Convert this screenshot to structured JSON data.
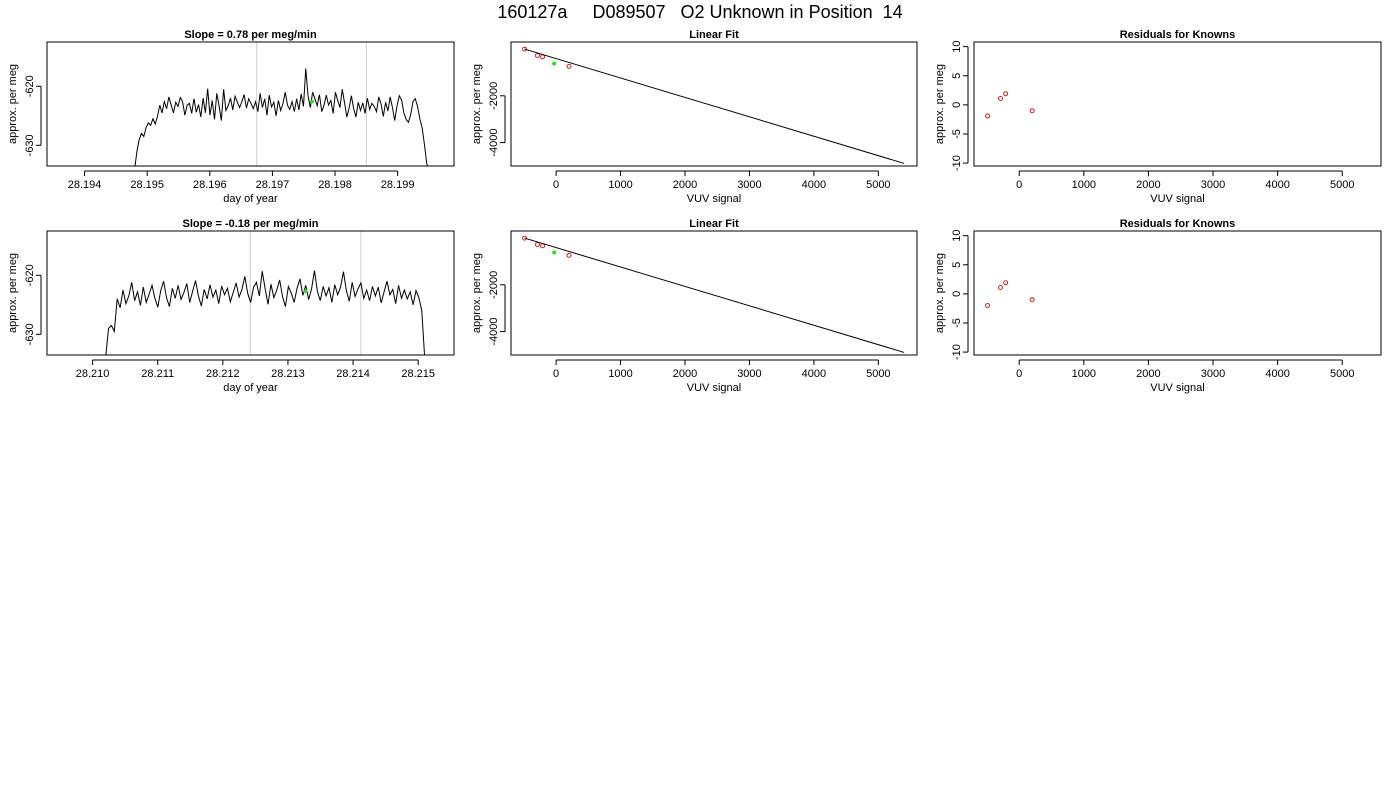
{
  "figure": {
    "title": "160127a     D089507   O2 Unknown in Position  14"
  },
  "colors": {
    "line": "#000000",
    "known_points": "#cc2222",
    "unknown_point": "#22dd22",
    "window_lines": "#cccccc",
    "axes": "#000000"
  },
  "chart_data": [
    {
      "type": "line",
      "title": "Slope =  0.78  per meg/min",
      "xlabel": "day of year",
      "ylabel": "approx. per meg",
      "xlim": [
        28.1934,
        28.1999
      ],
      "ylim": [
        -633.5,
        -612.5
      ],
      "x_ticks": [
        28.194,
        28.195,
        28.196,
        28.197,
        28.198,
        28.199
      ],
      "x_tick_labels": [
        "28.194",
        "28.195",
        "28.196",
        "28.197",
        "28.198",
        "28.199"
      ],
      "y_ticks": [
        -630,
        -620
      ],
      "y_tick_labels": [
        "-630",
        "-620"
      ],
      "window_lines_x": [
        28.19675,
        28.1985
      ],
      "series": [
        {
          "x_start": 28.1948,
          "x_end": 28.1995,
          "y": [
            -634.0,
            -631.0,
            -629.0,
            -628.0,
            -628.5,
            -627.0,
            -626.2,
            -626.6,
            -625.5,
            -626.4,
            -625.1,
            -623.2,
            -624.5,
            -622.6,
            -623.8,
            -621.8,
            -623.2,
            -624.5,
            -622.7,
            -623.4,
            -621.9,
            -622.6,
            -624.9,
            -623.2,
            -622.9,
            -624.6,
            -622.1,
            -624.4,
            -623.1,
            -625.2,
            -622.0,
            -624.5,
            -620.4,
            -624.9,
            -622.4,
            -625.6,
            -621.2,
            -623.3,
            -625.8,
            -620.5,
            -624.1,
            -623.3,
            -622.0,
            -624.0,
            -621.7,
            -622.7,
            -623.6,
            -622.6,
            -621.4,
            -623.7,
            -622.1,
            -622.9,
            -623.8,
            -622.6,
            -624.3,
            -621.2,
            -623.6,
            -622.1,
            -624.9,
            -621.5,
            -623.5,
            -622.7,
            -625.0,
            -622.4,
            -624.1,
            -622.9,
            -621.0,
            -623.2,
            -623.9,
            -622.6,
            -624.3,
            -622.1,
            -624.0,
            -621.3,
            -623.4,
            -617.0,
            -621.6,
            -623.6,
            -621.0,
            -622.1,
            -623.3,
            -621.4,
            -624.3,
            -623.2,
            -621.5,
            -623.2,
            -622.4,
            -624.6,
            -621.0,
            -622.4,
            -623.6,
            -620.5,
            -622.8,
            -625.2,
            -623.7,
            -621.6,
            -623.8,
            -625.2,
            -622.7,
            -624.1,
            -622.8,
            -624.6,
            -622.0,
            -623.9,
            -622.9,
            -623.4,
            -624.3,
            -621.8,
            -623.0,
            -625.1,
            -622.7,
            -624.2,
            -621.8,
            -623.6,
            -625.8,
            -623.3,
            -621.6,
            -622.3,
            -624.5,
            -625.6,
            -626.1,
            -624.8,
            -622.6,
            -622.1,
            -623.4,
            -625.5,
            -627.0,
            -629.8,
            -633.0,
            -634.5
          ]
        },
        {
          "name": "unknown",
          "kind": "point",
          "x": 28.19763,
          "y": -622.6
        }
      ]
    },
    {
      "type": "scatter",
      "title": "Linear Fit",
      "xlabel": "VUV signal",
      "ylabel": "approx. per meg",
      "xlim": [
        -700,
        5600
      ],
      "ylim": [
        -5000,
        300
      ],
      "x_ticks": [
        0,
        1000,
        2000,
        3000,
        4000,
        5000
      ],
      "x_tick_labels": [
        "0",
        "1000",
        "2000",
        "3000",
        "4000",
        "5000"
      ],
      "y_ticks": [
        -4000,
        -2000
      ],
      "y_tick_labels": [
        "-4000",
        "-2000"
      ],
      "series": [
        {
          "name": "knowns",
          "kind": "points",
          "x": [
            -490,
            -290,
            -210,
            200
          ],
          "y": [
            -2,
            -277,
            -333,
            -740
          ]
        },
        {
          "name": "unknown",
          "kind": "point",
          "x": [
            -30
          ],
          "y": [
            -620
          ]
        },
        {
          "name": "fit",
          "kind": "line",
          "x": [
            -490,
            5400
          ],
          "y": [
            -2,
            -4890
          ]
        }
      ]
    },
    {
      "type": "scatter",
      "title": "Residuals for Knowns",
      "xlabel": "VUV signal",
      "ylabel": "approx. per meg",
      "xlim": [
        -700,
        5600
      ],
      "ylim": [
        -10.5,
        10.8
      ],
      "x_ticks": [
        0,
        1000,
        2000,
        3000,
        4000,
        5000
      ],
      "x_tick_labels": [
        "0",
        "1000",
        "2000",
        "3000",
        "4000",
        "5000"
      ],
      "y_ticks": [
        -10,
        -5,
        0,
        5,
        10
      ],
      "y_tick_labels": [
        "-10",
        "-5",
        "0",
        "5",
        "10"
      ],
      "series": [
        {
          "name": "residuals",
          "kind": "points",
          "x": [
            -490,
            -290,
            -210,
            200
          ],
          "y": [
            -1.9,
            1.1,
            1.9,
            -1.0
          ]
        }
      ]
    },
    {
      "type": "line",
      "title": "Slope =  -0.18  per meg/min",
      "xlabel": "day of year",
      "ylabel": "approx. per meg",
      "xlim": [
        28.2093,
        28.21555
      ],
      "ylim": [
        -633.5,
        -612.5
      ],
      "x_ticks": [
        28.21,
        28.211,
        28.212,
        28.213,
        28.214,
        28.215
      ],
      "x_tick_labels": [
        "28.210",
        "28.211",
        "28.212",
        "28.213",
        "28.214",
        "28.215"
      ],
      "y_ticks": [
        -630,
        -620
      ],
      "y_tick_labels": [
        "-630",
        "-620"
      ],
      "window_lines_x": [
        28.21242,
        28.21412
      ],
      "series": [
        {
          "x_start": 28.2102,
          "x_end": 28.2151,
          "y": [
            -634.0,
            -629.0,
            -628.5,
            -629.5,
            -624.0,
            -625.5,
            -622.5,
            -624.8,
            -623.5,
            -621.2,
            -624.3,
            -622.8,
            -625.1,
            -622.0,
            -624.6,
            -623.2,
            -621.7,
            -623.9,
            -625.4,
            -622.6,
            -621.0,
            -623.8,
            -625.3,
            -622.2,
            -623.9,
            -621.7,
            -624.1,
            -622.9,
            -621.4,
            -624.6,
            -622.7,
            -620.9,
            -623.5,
            -625.2,
            -622.4,
            -624.0,
            -621.6,
            -623.7,
            -622.5,
            -624.8,
            -621.8,
            -623.3,
            -622.2,
            -624.5,
            -622.9,
            -621.3,
            -623.7,
            -622.4,
            -620.2,
            -623.1,
            -624.6,
            -622.0,
            -621.2,
            -623.5,
            -619.3,
            -622.3,
            -624.9,
            -621.5,
            -623.8,
            -622.5,
            -620.8,
            -623.6,
            -625.3,
            -621.9,
            -623.0,
            -624.6,
            -622.2,
            -620.6,
            -623.4,
            -621.7,
            -624.1,
            -622.3,
            -619.2,
            -622.7,
            -624.3,
            -621.9,
            -623.5,
            -622.1,
            -624.6,
            -621.6,
            -623.3,
            -622.0,
            -619.4,
            -622.6,
            -624.4,
            -621.2,
            -623.6,
            -622.3,
            -621.3,
            -623.9,
            -622.5,
            -624.3,
            -621.9,
            -623.5,
            -622.0,
            -624.7,
            -622.8,
            -621.0,
            -623.3,
            -622.4,
            -624.8,
            -621.7,
            -623.9,
            -622.5,
            -624.0,
            -622.8,
            -625.0,
            -622.6,
            -623.8,
            -626.0,
            -634.0
          ]
        },
        {
          "name": "unknown",
          "kind": "point",
          "x": 28.21327,
          "y": -622.7
        }
      ]
    },
    {
      "type": "scatter",
      "title": "Linear Fit",
      "xlabel": "VUV signal",
      "ylabel": "approx. per meg",
      "xlim": [
        -700,
        5600
      ],
      "ylim": [
        -5000,
        300
      ],
      "x_ticks": [
        0,
        1000,
        2000,
        3000,
        4000,
        5000
      ],
      "x_tick_labels": [
        "0",
        "1000",
        "2000",
        "3000",
        "4000",
        "5000"
      ],
      "y_ticks": [
        -4000,
        -2000
      ],
      "y_tick_labels": [
        "-4000",
        "-2000"
      ],
      "series": [
        {
          "name": "knowns",
          "kind": "points",
          "x": [
            -490,
            -290,
            -210,
            200
          ],
          "y": [
            -2,
            -277,
            -333,
            -740
          ]
        },
        {
          "name": "unknown",
          "kind": "point",
          "x": [
            -30
          ],
          "y": [
            -620
          ]
        },
        {
          "name": "fit",
          "kind": "line",
          "x": [
            -490,
            5400
          ],
          "y": [
            -2,
            -4890
          ]
        }
      ]
    },
    {
      "type": "scatter",
      "title": "Residuals for Knowns",
      "xlabel": "VUV signal",
      "ylabel": "approx. per meg",
      "xlim": [
        -700,
        5600
      ],
      "ylim": [
        -10.5,
        10.8
      ],
      "x_ticks": [
        0,
        1000,
        2000,
        3000,
        4000,
        5000
      ],
      "x_tick_labels": [
        "0",
        "1000",
        "2000",
        "3000",
        "4000",
        "5000"
      ],
      "y_ticks": [
        -10,
        -5,
        0,
        5,
        10
      ],
      "y_tick_labels": [
        "-10",
        "-5",
        "0",
        "5",
        "10"
      ],
      "series": [
        {
          "name": "residuals",
          "kind": "points",
          "x": [
            -490,
            -290,
            -210,
            200
          ],
          "y": [
            -2.0,
            1.1,
            1.9,
            -1.0
          ]
        }
      ]
    }
  ]
}
